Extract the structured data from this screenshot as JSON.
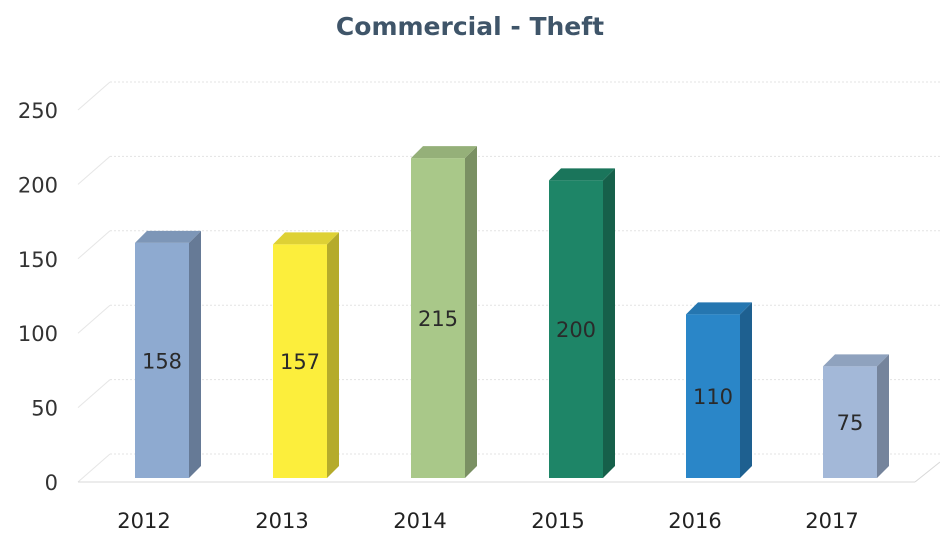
{
  "chart_data": {
    "type": "bar",
    "title": "Commercial - Theft",
    "categories": [
      "2012",
      "2013",
      "2014",
      "2015",
      "2016",
      "2017"
    ],
    "values": [
      158,
      157,
      215,
      200,
      110,
      75
    ],
    "data_labels": [
      "158",
      "157",
      "215",
      "200",
      "110",
      "75"
    ],
    "ylim": [
      0,
      250
    ],
    "yticks": [
      "0",
      "50",
      "100",
      "150",
      "200",
      "250"
    ],
    "grid": true,
    "legend": "none",
    "style": "3d-column",
    "colors": [
      "#8eaad0",
      "#fcee3c",
      "#a9c889",
      "#1e8567",
      "#2a86c8",
      "#a3b8d8"
    ]
  }
}
